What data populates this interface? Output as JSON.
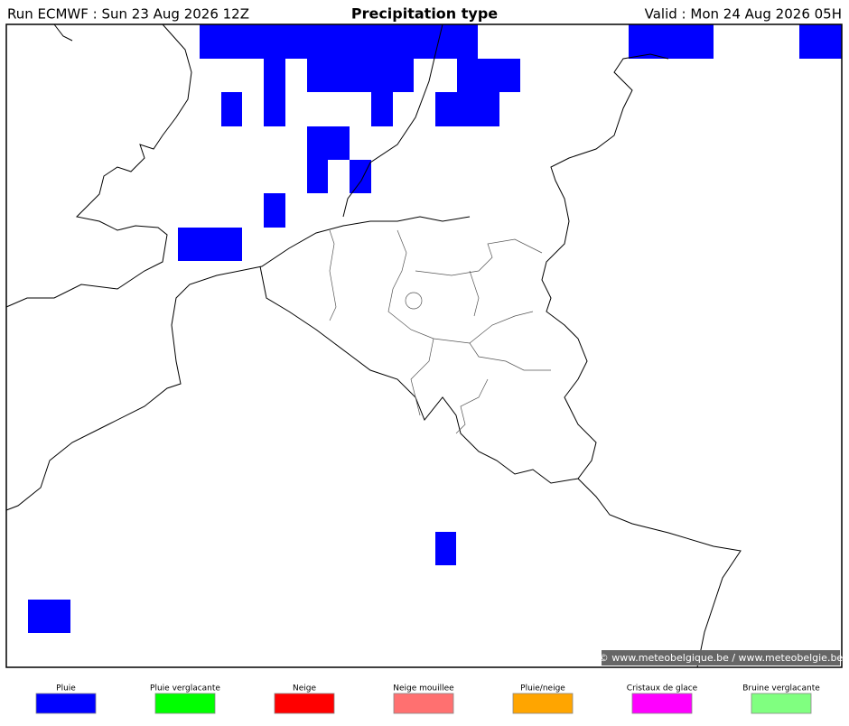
{
  "header": {
    "run": "Run ECMWF : Sun 23 Aug 2026 12Z",
    "title": "Precipitation type",
    "valid": "Valid : Mon 24 Aug 2026 05H"
  },
  "map": {
    "credit": "© www.meteobelgique.be / www.meteobelgie.be"
  },
  "legend": [
    {
      "label": "Pluie",
      "color": "#0000ff"
    },
    {
      "label": "Pluie verglacante",
      "color": "#00ff00"
    },
    {
      "label": "Neige",
      "color": "#ff0000"
    },
    {
      "label": "Neige mouillee",
      "color": "#ff7070"
    },
    {
      "label": "Pluie/neige",
      "color": "#ffa500"
    },
    {
      "label": "Cristaux de glace",
      "color": "#ff00ff"
    },
    {
      "label": "Bruine verglacante",
      "color": "#80ff80"
    }
  ]
}
